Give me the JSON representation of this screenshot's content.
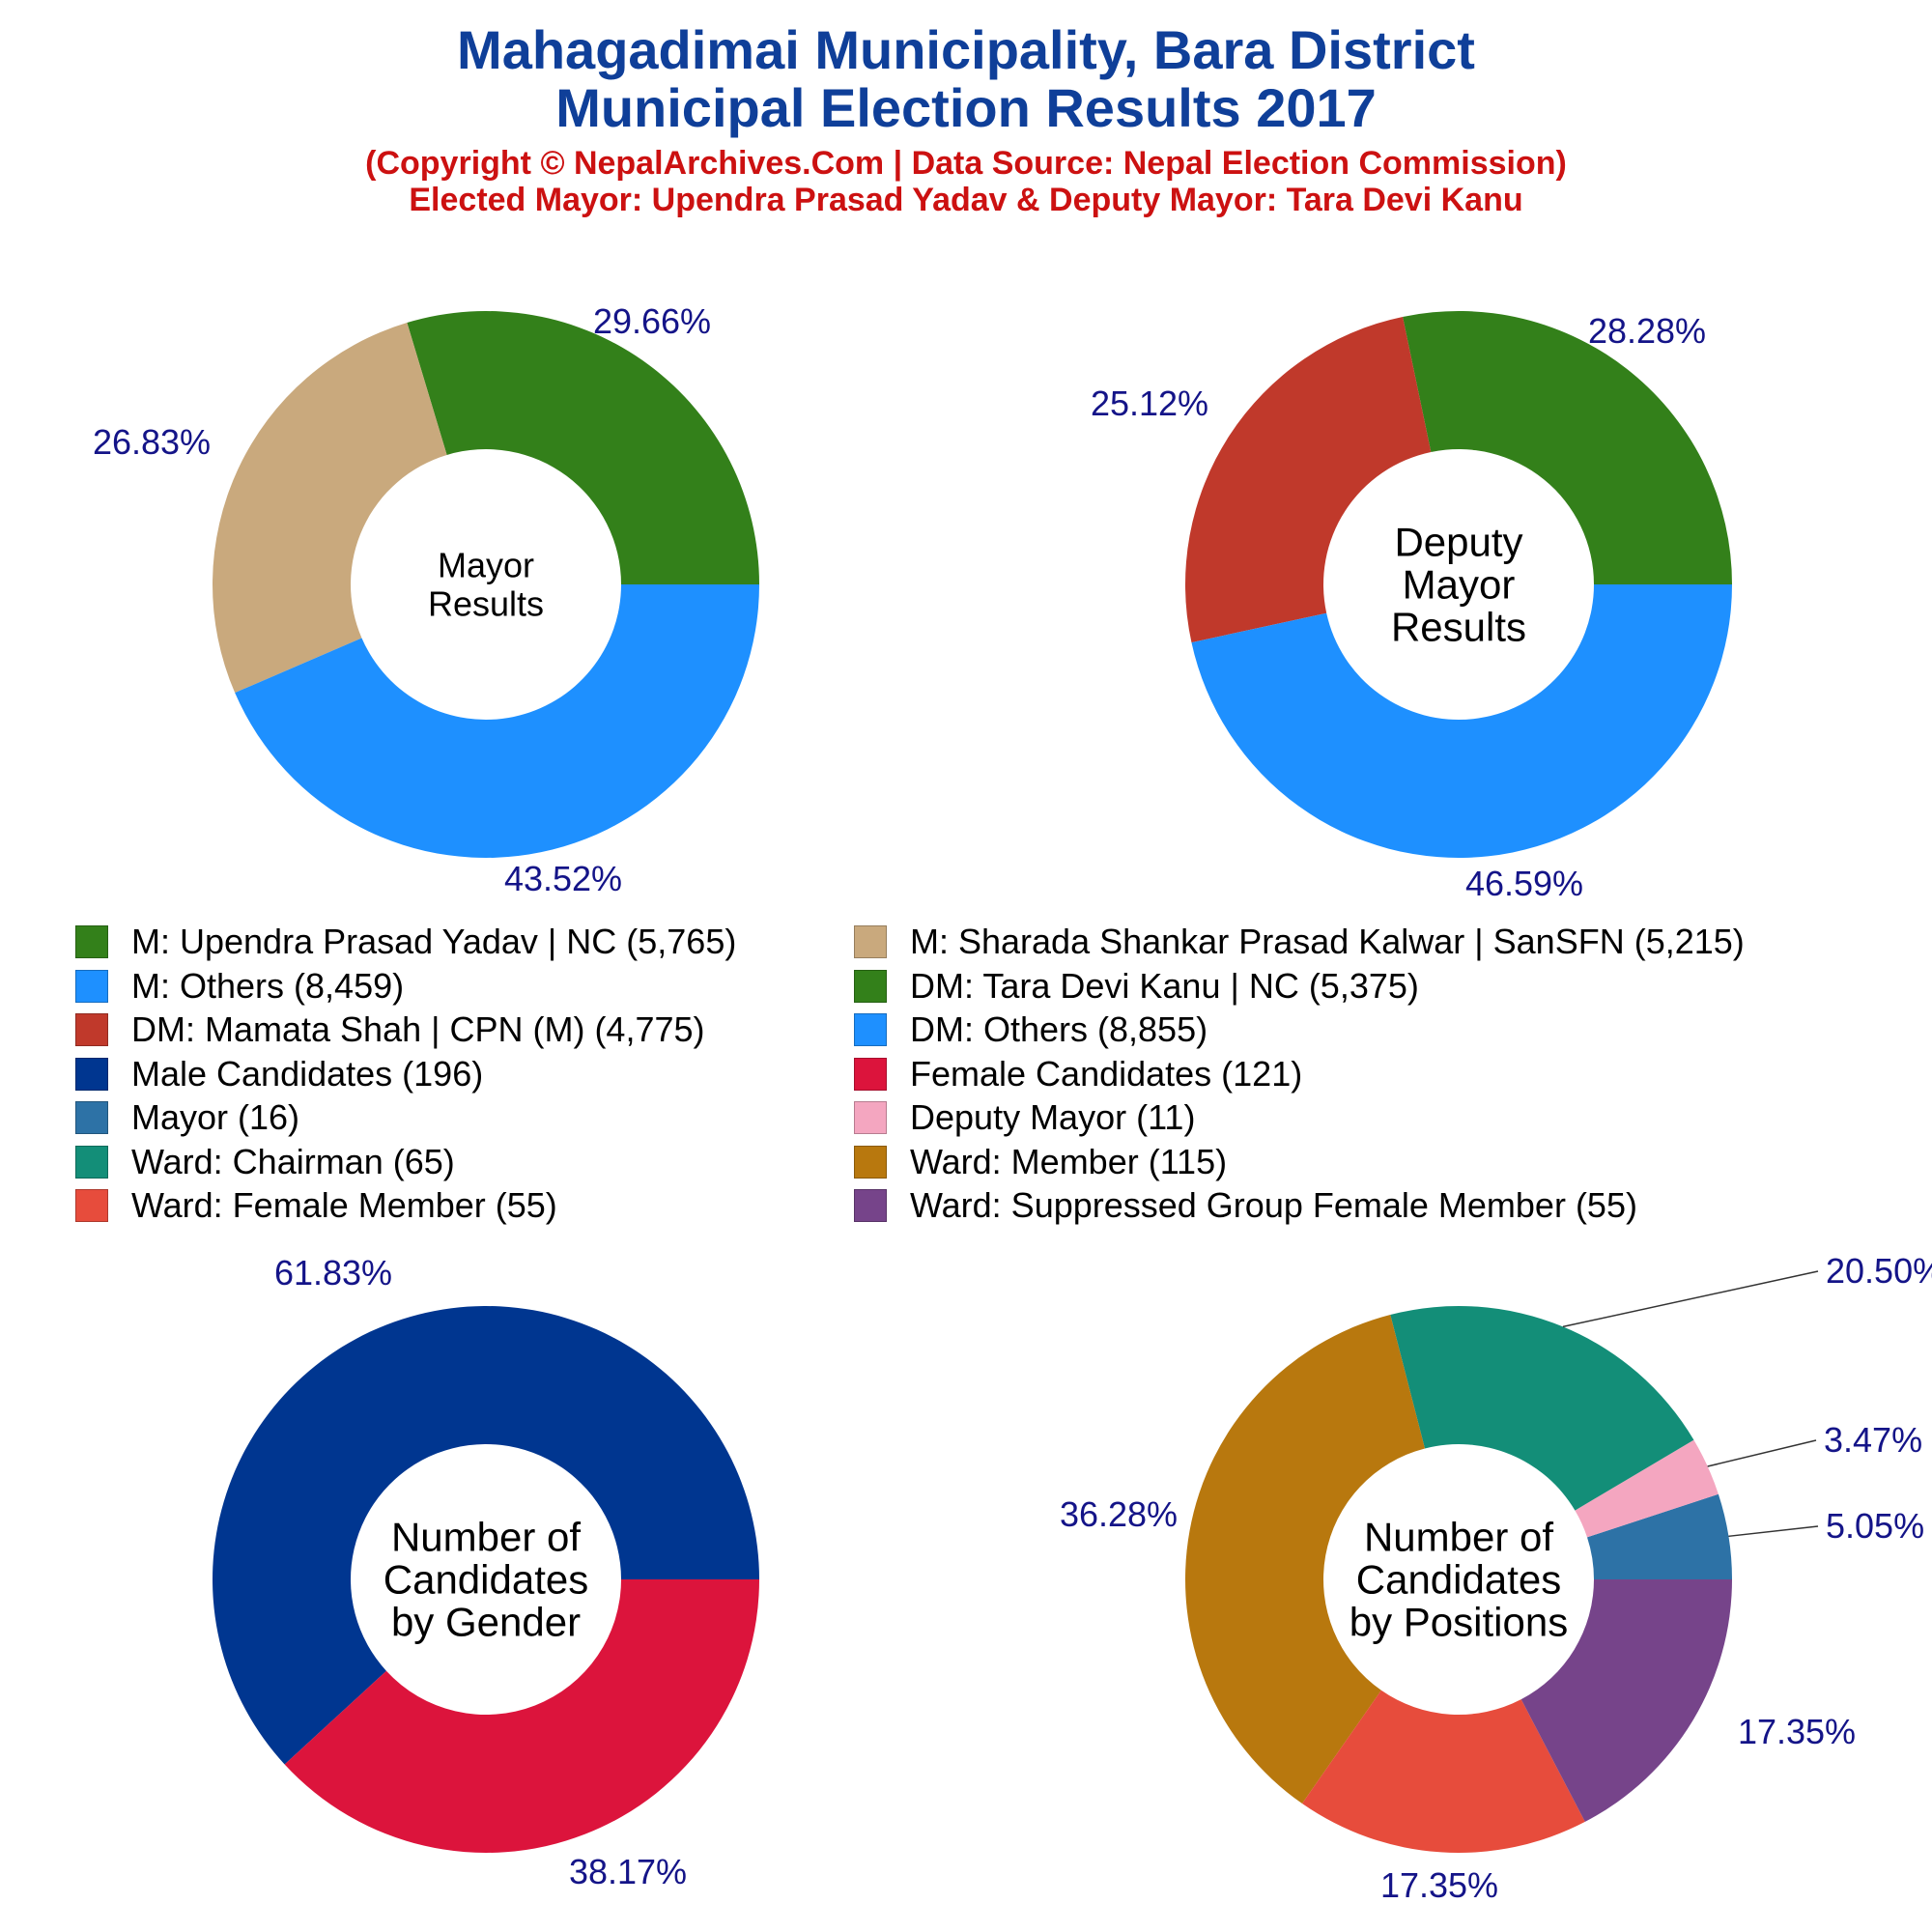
{
  "header": {
    "title_line1": "Mahagadimai Municipality, Bara District",
    "title_line2": "Municipal Election Results 2017",
    "subtitle_line1": "(Copyright © NepalArchives.Com | Data Source: Nepal Election Commission)",
    "subtitle_line2": "Elected Mayor: Upendra Prasad Yadav & Deputy Mayor: Tara Devi Kanu"
  },
  "colors": {
    "title": "#0f3f99",
    "subtitle": "#cc1111",
    "pct_label": "#141488"
  },
  "legend": [
    {
      "label": "M: Upendra Prasad Yadav | NC (5,765)",
      "color": "#33801a"
    },
    {
      "label": "M: Sharada Shankar Prasad Kalwar | SanSFN (5,215)",
      "color": "#c9a97d"
    },
    {
      "label": "M: Others (8,459)",
      "color": "#1e90ff"
    },
    {
      "label": "DM: Tara Devi Kanu | NC (5,375)",
      "color": "#33801a"
    },
    {
      "label": "DM: Mamata Shah | CPN (M) (4,775)",
      "color": "#c0392b"
    },
    {
      "label": "DM: Others (8,855)",
      "color": "#1e90ff"
    },
    {
      "label": "Male Candidates (196)",
      "color": "#003690"
    },
    {
      "label": "Female Candidates (121)",
      "color": "#dc143c"
    },
    {
      "label": "Mayor (16)",
      "color": "#2d72a6"
    },
    {
      "label": "Deputy Mayor (11)",
      "color": "#f4a6c0"
    },
    {
      "label": "Ward: Chairman (65)",
      "color": "#138e78"
    },
    {
      "label": "Ward: Member (115)",
      "color": "#b8780e"
    },
    {
      "label": "Ward: Female Member (55)",
      "color": "#e74c3c"
    },
    {
      "label": "Ward: Suppressed Group Female Member (55)",
      "color": "#76448a"
    }
  ],
  "chart_data": [
    {
      "type": "pie",
      "title": "Mayor Results",
      "center_lines": [
        "Mayor",
        "Results"
      ],
      "slices": [
        {
          "name": "M: Upendra Prasad Yadav | NC",
          "value": 5765,
          "pct_label": "29.66%",
          "color": "#33801a"
        },
        {
          "name": "M: Sharada Shankar Prasad Kalwar | SanSFN",
          "value": 5215,
          "pct_label": "26.83%",
          "color": "#c9a97d"
        },
        {
          "name": "M: Others",
          "value": 8459,
          "pct_label": "43.52%",
          "color": "#1e90ff"
        }
      ]
    },
    {
      "type": "pie",
      "title": "Deputy Mayor Results",
      "center_lines": [
        "Deputy",
        "Mayor",
        "Results"
      ],
      "slices": [
        {
          "name": "DM: Tara Devi Kanu | NC",
          "value": 5375,
          "pct_label": "28.28%",
          "color": "#33801a"
        },
        {
          "name": "DM: Mamata Shah | CPN (M)",
          "value": 4775,
          "pct_label": "25.12%",
          "color": "#c0392b"
        },
        {
          "name": "DM: Others",
          "value": 8855,
          "pct_label": "46.59%",
          "color": "#1e90ff"
        }
      ]
    },
    {
      "type": "pie",
      "title": "Number of Candidates by Gender",
      "center_lines": [
        "Number of",
        "Candidates",
        "by Gender"
      ],
      "slices": [
        {
          "name": "Male Candidates",
          "value": 196,
          "pct_label": "61.83%",
          "color": "#003690"
        },
        {
          "name": "Female Candidates",
          "value": 121,
          "pct_label": "38.17%",
          "color": "#dc143c"
        }
      ]
    },
    {
      "type": "pie",
      "title": "Number of Candidates by Positions",
      "center_lines": [
        "Number of",
        "Candidates",
        "by Positions"
      ],
      "slices": [
        {
          "name": "Mayor",
          "value": 16,
          "pct_label": "5.05%",
          "color": "#2d72a6"
        },
        {
          "name": "Deputy Mayor",
          "value": 11,
          "pct_label": "3.47%",
          "color": "#f4a6c0"
        },
        {
          "name": "Ward: Chairman",
          "value": 65,
          "pct_label": "20.50%",
          "color": "#138e78"
        },
        {
          "name": "Ward: Member",
          "value": 115,
          "pct_label": "36.28%",
          "color": "#b8780e"
        },
        {
          "name": "Ward: Female Member",
          "value": 55,
          "pct_label": "17.35%",
          "color": "#e74c3c"
        },
        {
          "name": "Ward: Suppressed Group Female Member",
          "value": 55,
          "pct_label": "17.35%",
          "color": "#76448a"
        }
      ]
    }
  ]
}
